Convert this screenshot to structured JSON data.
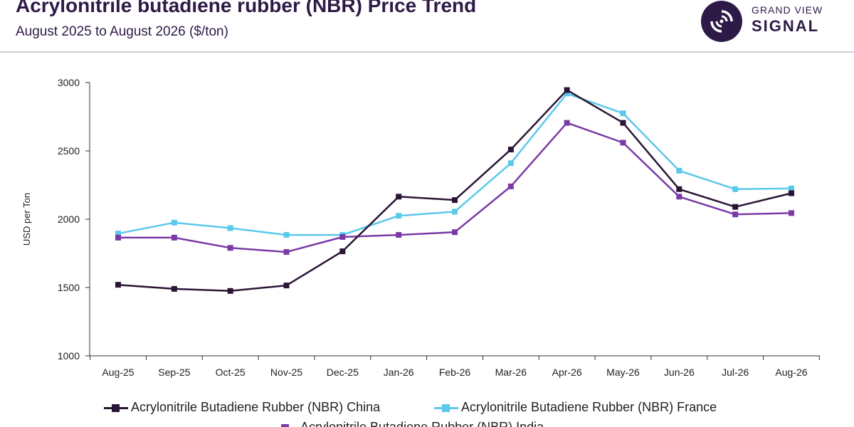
{
  "header": {
    "title": "Acrylonitrile butadiene rubber (NBR) Price Trend",
    "subtitle": "August 2025 to August 2026 ($/ton)"
  },
  "brand": {
    "line1": "GRAND VIEW",
    "line2": "SIGNAL",
    "logo_icon": "signal-logo-icon",
    "color": "#2e1a47"
  },
  "chart_data": {
    "type": "line",
    "title": "Acrylonitrile butadiene rubber (NBR) Price Trend",
    "subtitle": "August 2025 to August 2026 ($/ton)",
    "xlabel": "",
    "ylabel": "USD per Ton",
    "ylim": [
      1000,
      3000
    ],
    "yticks": [
      1000,
      1500,
      2000,
      2500,
      3000
    ],
    "grid": false,
    "legend_position": "bottom",
    "categories": [
      "Aug-25",
      "Sep-25",
      "Oct-25",
      "Nov-25",
      "Dec-25",
      "Jan-26",
      "Feb-26",
      "Mar-26",
      "Apr-26",
      "May-26",
      "Jun-26",
      "Jul-26",
      "Aug-26"
    ],
    "series": [
      {
        "name": "Acrylonitrile Butadiene Rubber (NBR) China",
        "color": "#2a1535",
        "values": [
          1520,
          1490,
          1475,
          1515,
          1765,
          2165,
          2140,
          2510,
          2945,
          2705,
          2220,
          2090,
          2190
        ]
      },
      {
        "name": "Acrylonitrile Butadiene Rubber (NBR) France",
        "color": "#5bc8ec",
        "values": [
          1895,
          1975,
          1935,
          1885,
          1885,
          2025,
          2055,
          2410,
          2920,
          2775,
          2355,
          2220,
          2225
        ]
      },
      {
        "name": "Acrylonitrile Butadiene Rubber (NBR) India",
        "color": "#7a3aa6",
        "values": [
          1865,
          1865,
          1790,
          1760,
          1870,
          1885,
          1905,
          2240,
          2705,
          2560,
          2165,
          2035,
          2045
        ]
      }
    ]
  }
}
